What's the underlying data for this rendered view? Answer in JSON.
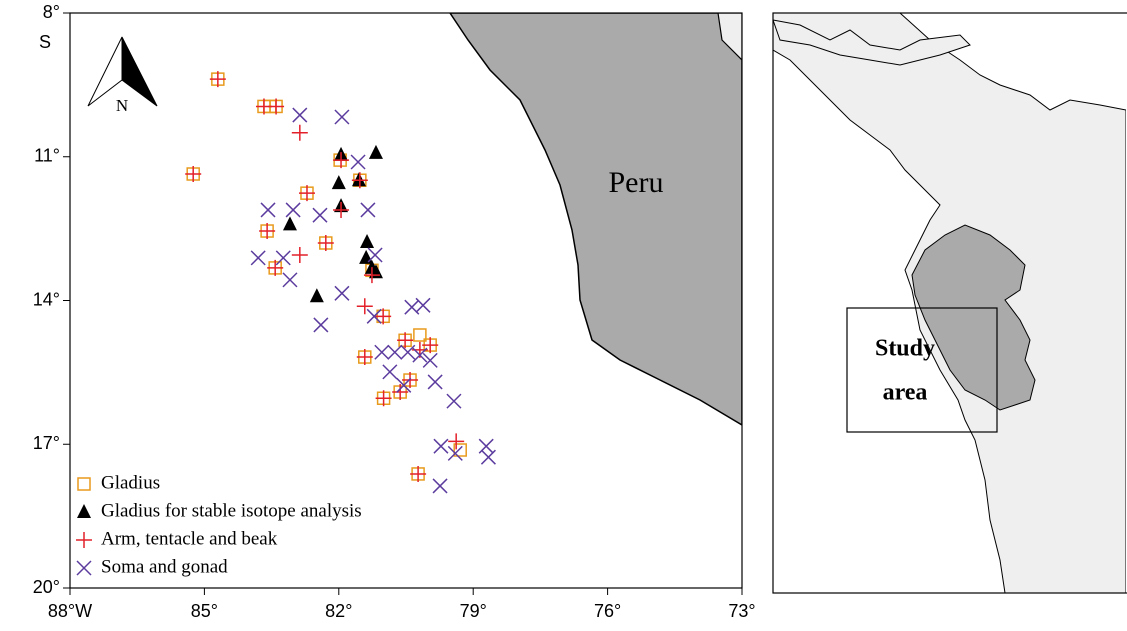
{
  "chart_data": {
    "type": "scatter",
    "xlim": [
      -88,
      -73
    ],
    "xticks": [
      {
        "value": -88,
        "label": "88°W"
      },
      {
        "value": -85,
        "label": "85°"
      },
      {
        "value": -82,
        "label": "82°"
      },
      {
        "value": -79,
        "label": "79°"
      },
      {
        "value": -76,
        "label": "76°"
      },
      {
        "value": -73,
        "label": "73°"
      }
    ],
    "ylim": [
      -20,
      -8
    ],
    "yticks": [
      {
        "value": -8,
        "label": "8°"
      },
      {
        "value": -11,
        "label": "11°"
      },
      {
        "value": -14,
        "label": "14°"
      },
      {
        "value": -17,
        "label": "17°"
      },
      {
        "value": -20,
        "label": "20°"
      }
    ],
    "y_hemisphere_label": "S",
    "north_label": "N",
    "annotations": [
      "Peru"
    ],
    "legend": "bottom-left",
    "series": [
      {
        "name": "Gladius",
        "color": "#e89a1c",
        "marker": "square",
        "x": [
          -84.7,
          -83.67,
          -83.54,
          -83.4,
          -85.25,
          -82.71,
          -83.6,
          -83.42,
          -82.29,
          -81.97,
          -81.53,
          -81.26,
          -81.01,
          -80.52,
          -80.19,
          -79.96,
          -80.41,
          -79.29,
          -80.23,
          -81.42,
          -81.0,
          -80.63
        ],
        "values": [
          -9.38,
          -9.95,
          -9.95,
          -9.95,
          -11.36,
          -11.76,
          -12.55,
          -13.32,
          -12.8,
          -11.07,
          -11.49,
          -13.37,
          -14.33,
          -14.83,
          -14.72,
          -14.93,
          -15.66,
          -17.12,
          -17.62,
          -15.18,
          -16.04,
          -15.91
        ]
      },
      {
        "name": "Gladius for stable isotope analysis",
        "color": "#000000",
        "marker": "triangle",
        "x": [
          -81.95,
          -81.17,
          -82.0,
          -81.55,
          -81.95,
          -83.09,
          -81.37,
          -81.39,
          -81.26,
          -81.17,
          -82.49
        ],
        "values": [
          -10.96,
          -10.92,
          -11.55,
          -11.49,
          -12.03,
          -12.41,
          -12.78,
          -13.11,
          -13.32,
          -13.41,
          -13.91
        ]
      },
      {
        "name": "Arm, tentacle and beak",
        "color": "#e3202a",
        "marker": "plus",
        "x": [
          -84.7,
          -83.67,
          -83.4,
          -82.87,
          -85.25,
          -82.71,
          -83.6,
          -83.42,
          -82.29,
          -81.95,
          -81.53,
          -81.95,
          -81.26,
          -81.42,
          -81.01,
          -80.52,
          -80.19,
          -79.96,
          -80.41,
          -80.63,
          -81.0,
          -81.42,
          -79.38,
          -80.23,
          -82.87
        ],
        "values": [
          -9.38,
          -9.95,
          -9.95,
          -10.5,
          -11.36,
          -11.76,
          -12.55,
          -13.32,
          -12.8,
          -11.07,
          -11.49,
          -12.11,
          -13.47,
          -14.12,
          -14.33,
          -14.83,
          -15.03,
          -14.93,
          -15.66,
          -15.91,
          -16.04,
          -15.18,
          -16.94,
          -17.62,
          -13.05
        ]
      },
      {
        "name": "Soma and gonad",
        "color": "#5b3c9e",
        "marker": "cross",
        "x": [
          -82.87,
          -81.93,
          -83.58,
          -83.02,
          -83.8,
          -83.24,
          -82.42,
          -83.09,
          -82.4,
          -81.93,
          -81.57,
          -81.35,
          -81.19,
          -80.37,
          -80.12,
          -81.21,
          -81.04,
          -80.75,
          -80.46,
          -80.19,
          -79.96,
          -80.86,
          -80.55,
          -79.43,
          -79.72,
          -79.4,
          -78.71,
          -78.66,
          -79.74,
          -79.85
        ],
        "values": [
          -10.13,
          -10.17,
          -12.11,
          -12.11,
          -13.11,
          -13.11,
          -12.22,
          -13.57,
          -14.51,
          -13.85,
          -11.11,
          -12.11,
          -13.05,
          -14.14,
          -14.1,
          -14.33,
          -15.08,
          -15.08,
          -15.08,
          -15.14,
          -15.25,
          -15.49,
          -15.77,
          -16.1,
          -17.04,
          -17.19,
          -17.04,
          -17.27,
          -17.87,
          -15.7
        ]
      }
    ]
  },
  "inset": {
    "label_lines": [
      "Study",
      "area"
    ]
  }
}
